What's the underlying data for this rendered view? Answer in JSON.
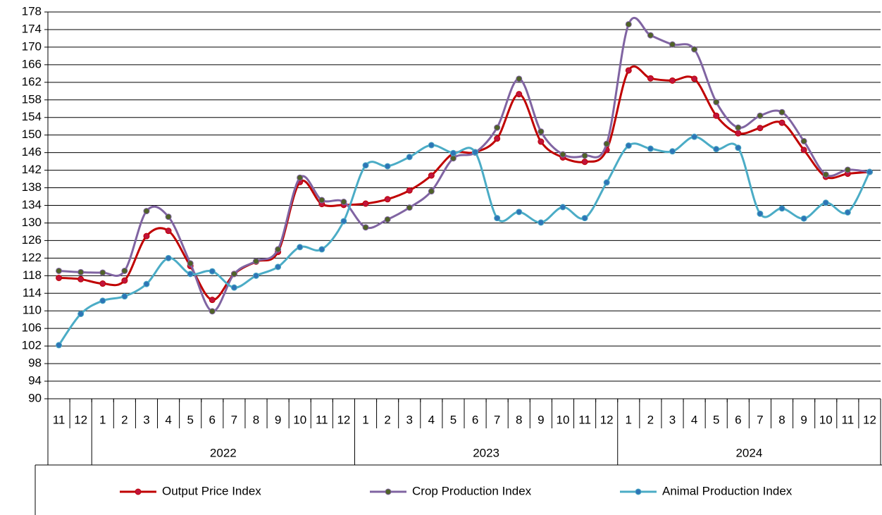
{
  "chart_data": {
    "type": "line",
    "categories": [
      "11",
      "12",
      "1",
      "2",
      "3",
      "4",
      "5",
      "6",
      "7",
      "8",
      "9",
      "10",
      "11",
      "12",
      "1",
      "2",
      "3",
      "4",
      "5",
      "6",
      "7",
      "8",
      "9",
      "10",
      "11",
      "12",
      "1",
      "2",
      "3",
      "4",
      "5",
      "6",
      "7",
      "8",
      "9",
      "10",
      "11",
      "12"
    ],
    "category_groups": [
      {
        "label": null,
        "size": 2
      },
      {
        "label": "2022",
        "size": 12
      },
      {
        "label": "2023",
        "size": 12
      },
      {
        "label": "2024",
        "size": 12
      }
    ],
    "ylim": [
      90,
      178
    ],
    "yticks": [
      90,
      94,
      98,
      102,
      106,
      110,
      114,
      118,
      122,
      126,
      130,
      134,
      138,
      142,
      146,
      150,
      154,
      158,
      162,
      166,
      170,
      174,
      178
    ],
    "grid": true,
    "smooth": true,
    "legend": "bottom",
    "series": [
      {
        "name": "Output Price Index",
        "color": "#c00000",
        "marker_color": "#c0143c",
        "values": [
          117.5,
          117.2,
          116.2,
          116.9,
          127.0,
          128.2,
          120.2,
          112.5,
          118.4,
          121.2,
          123.4,
          139.3,
          134.3,
          134.1,
          134.4,
          135.4,
          137.4,
          140.8,
          145.8,
          146.1,
          149.2,
          159.3,
          148.5,
          144.9,
          143.9,
          146.6,
          164.7,
          162.9,
          162.4,
          162.8,
          154.4,
          150.4,
          151.6,
          152.8,
          146.6,
          140.5,
          141.2,
          141.6
        ]
      },
      {
        "name": "Crop Production Index",
        "color": "#8064a2",
        "marker_color": "#4f6228",
        "values": [
          119.1,
          118.8,
          118.7,
          119.1,
          132.7,
          131.4,
          120.8,
          109.9,
          118.4,
          121.3,
          124.0,
          140.3,
          135.2,
          134.8,
          129.0,
          130.8,
          133.5,
          137.2,
          144.7,
          146.0,
          151.7,
          162.8,
          150.8,
          145.6,
          145.3,
          148.0,
          175.2,
          172.7,
          170.6,
          169.5,
          157.5,
          151.7,
          154.4,
          155.2,
          148.6,
          141.0,
          142.1,
          141.6
        ]
      },
      {
        "name": "Animal Production Index",
        "color": "#4bacc6",
        "marker_color": "#2e75b6",
        "values": [
          102.2,
          109.3,
          112.3,
          113.3,
          116.1,
          122.0,
          118.4,
          119.0,
          115.3,
          118.0,
          120.0,
          124.5,
          124.0,
          130.4,
          143.1,
          142.9,
          145.0,
          147.7,
          145.9,
          146.1,
          131.1,
          132.5,
          130.1,
          133.6,
          131.1,
          139.2,
          147.6,
          146.9,
          146.3,
          149.6,
          146.8,
          147.1,
          132.1,
          133.3,
          131.0,
          134.6,
          132.4,
          141.6
        ]
      }
    ]
  }
}
